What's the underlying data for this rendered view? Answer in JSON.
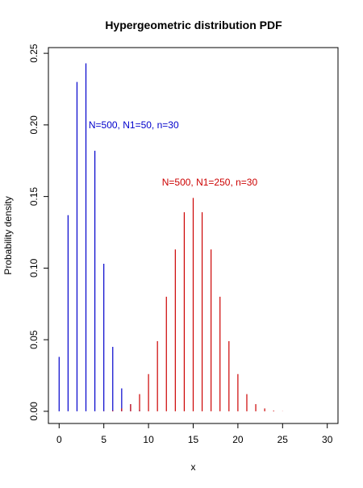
{
  "chart_data": {
    "type": "bar",
    "title": "Hypergeometric distribution PDF",
    "xlabel": "x",
    "ylabel": "Probability density",
    "xlim": [
      -1.2,
      31.2
    ],
    "ylim": [
      -0.0085,
      0.254
    ],
    "xticks": [
      "0",
      "5",
      "10",
      "15",
      "20",
      "25",
      "30"
    ],
    "yticks": [
      "0.00",
      "0.05",
      "0.10",
      "0.15",
      "0.20",
      "0.25"
    ],
    "grid": false,
    "series": [
      {
        "label": "N=500, N1=50, n=30",
        "color": "#0000cc",
        "label_at": {
          "x": 3.3,
          "y": 0.2
        },
        "x": [
          0,
          1,
          2,
          3,
          4,
          5,
          6,
          7,
          8,
          9,
          10,
          11,
          12,
          13,
          14,
          15,
          16,
          17,
          18,
          19,
          20,
          21,
          22,
          23,
          24,
          25,
          26,
          27,
          28,
          29,
          30
        ],
        "values": [
          0.038,
          0.137,
          0.23,
          0.243,
          0.182,
          0.103,
          0.045,
          0.016,
          0.005,
          0.001,
          0,
          0,
          0,
          0,
          0,
          0,
          0,
          0,
          0,
          0,
          0,
          0,
          0,
          0,
          0,
          0,
          0,
          0,
          0,
          0,
          0
        ]
      },
      {
        "label": "N=500, N1=250, n=30",
        "color": "#cc0000",
        "label_at": {
          "x": 11.5,
          "y": 0.16
        },
        "x": [
          0,
          1,
          2,
          3,
          4,
          5,
          6,
          7,
          8,
          9,
          10,
          11,
          12,
          13,
          14,
          15,
          16,
          17,
          18,
          19,
          20,
          21,
          22,
          23,
          24,
          25,
          26,
          27,
          28,
          29,
          30
        ],
        "values": [
          0,
          0,
          0,
          0,
          0,
          0.0001,
          0.0005,
          0.002,
          0.005,
          0.012,
          0.026,
          0.049,
          0.08,
          0.113,
          0.139,
          0.149,
          0.139,
          0.113,
          0.08,
          0.049,
          0.026,
          0.012,
          0.005,
          0.002,
          0.0005,
          0.0001,
          0,
          0,
          0,
          0,
          0
        ]
      }
    ]
  }
}
